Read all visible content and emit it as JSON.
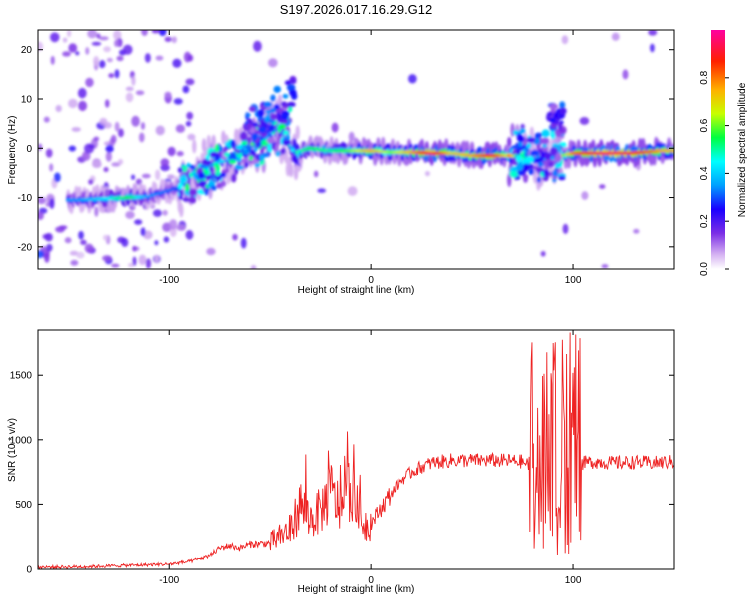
{
  "title": "S197.2026.017.16.29.G12",
  "chart_data": [
    {
      "type": "heatmap",
      "xlabel": "Height of straight line (km)",
      "ylabel": "Frequency (Hz)",
      "xlim": [
        -165,
        150
      ],
      "ylim": [
        -24.5,
        24
      ],
      "xticks": [
        -100,
        0,
        100
      ],
      "yticks": [
        -20,
        -10,
        0,
        10,
        20
      ],
      "ridge": [
        {
          "x": -145,
          "y": -10.5,
          "a": 0.35
        },
        {
          "x": -130,
          "y": -10.2,
          "a": 0.45
        },
        {
          "x": -120,
          "y": -10.0,
          "a": 0.55
        },
        {
          "x": -110,
          "y": -9.8,
          "a": 0.35
        },
        {
          "x": -95,
          "y": -8.0,
          "a": 0.3
        },
        {
          "x": -88,
          "y": -5.0,
          "a": 0.35
        },
        {
          "x": -80,
          "y": -3.5,
          "a": 0.4
        },
        {
          "x": -72,
          "y": -2.5,
          "a": 0.35
        },
        {
          "x": -65,
          "y": -1.0,
          "a": 0.4
        },
        {
          "x": -58,
          "y": 1.0,
          "a": 0.45
        },
        {
          "x": -50,
          "y": 2.5,
          "a": 0.45
        },
        {
          "x": -45,
          "y": 4.0,
          "a": 0.35
        },
        {
          "x": -38,
          "y": -1.0,
          "a": 0.45
        },
        {
          "x": -30,
          "y": 0.0,
          "a": 0.55
        },
        {
          "x": -20,
          "y": -0.5,
          "a": 0.5
        },
        {
          "x": -10,
          "y": -0.5,
          "a": 0.6
        },
        {
          "x": 0,
          "y": -0.5,
          "a": 0.75
        },
        {
          "x": 10,
          "y": -0.8,
          "a": 0.6
        },
        {
          "x": 20,
          "y": -0.8,
          "a": 0.75
        },
        {
          "x": 30,
          "y": -1.0,
          "a": 0.95
        },
        {
          "x": 40,
          "y": -1.0,
          "a": 0.7
        },
        {
          "x": 50,
          "y": -1.5,
          "a": 0.75
        },
        {
          "x": 60,
          "y": -1.5,
          "a": 0.9
        },
        {
          "x": 70,
          "y": -1.5,
          "a": 0.6
        },
        {
          "x": 80,
          "y": -2.0,
          "a": 0.35
        },
        {
          "x": 90,
          "y": -2.0,
          "a": 0.3
        },
        {
          "x": 100,
          "y": -1.0,
          "a": 0.8
        },
        {
          "x": 115,
          "y": -1.0,
          "a": 0.95
        },
        {
          "x": 130,
          "y": -1.0,
          "a": 0.9
        },
        {
          "x": 145,
          "y": -0.5,
          "a": 0.75
        }
      ],
      "colorbar": {
        "label": "Normalized spectral amplitude",
        "range": [
          0,
          1
        ],
        "ticks": [
          "0.0",
          "0.2",
          "0.4",
          "0.6",
          "0.8"
        ],
        "tick_values": [
          0.0,
          0.2,
          0.4,
          0.6,
          0.8
        ],
        "colors": [
          "#ffffff",
          "#c9a0f0",
          "#7b2ee6",
          "#1a00ff",
          "#00a0ff",
          "#00ffff",
          "#00ff40",
          "#c8ff00",
          "#ffb000",
          "#ff2000",
          "#ff00a0"
        ]
      }
    },
    {
      "type": "line",
      "xlabel": "Height of straight line (km)",
      "ylabel": "SNR (10 * v/v)",
      "xlim": [
        -165,
        150
      ],
      "ylim": [
        0,
        1850
      ],
      "xticks": [
        -100,
        0,
        100
      ],
      "yticks": [
        0,
        500,
        1000,
        1500
      ],
      "line_color": "#ee2222",
      "x": [
        -165,
        -140,
        -120,
        -100,
        -90,
        -80,
        -75,
        -70,
        -65,
        -60,
        -50,
        -40,
        -35,
        -30,
        -25,
        -20,
        -15,
        -10,
        -5,
        0,
        5,
        10,
        15,
        20,
        25,
        30,
        40,
        50,
        60,
        70,
        75,
        78,
        80,
        82,
        84,
        86,
        88,
        90,
        92,
        94,
        96,
        98,
        100,
        102,
        103,
        105,
        110,
        120,
        130,
        140,
        150
      ],
      "y": [
        15,
        20,
        30,
        40,
        60,
        100,
        160,
        180,
        160,
        190,
        200,
        300,
        500,
        380,
        450,
        600,
        460,
        650,
        360,
        350,
        470,
        580,
        690,
        750,
        790,
        820,
        840,
        840,
        840,
        835,
        830,
        800,
        1800,
        150,
        1600,
        300,
        1500,
        200,
        1400,
        350,
        1700,
        150,
        1850,
        80,
        800,
        820,
        830,
        820,
        825,
        820,
        830
      ],
      "spike_band": [
        78,
        104
      ],
      "noise_amplitude": 0.15
    }
  ]
}
